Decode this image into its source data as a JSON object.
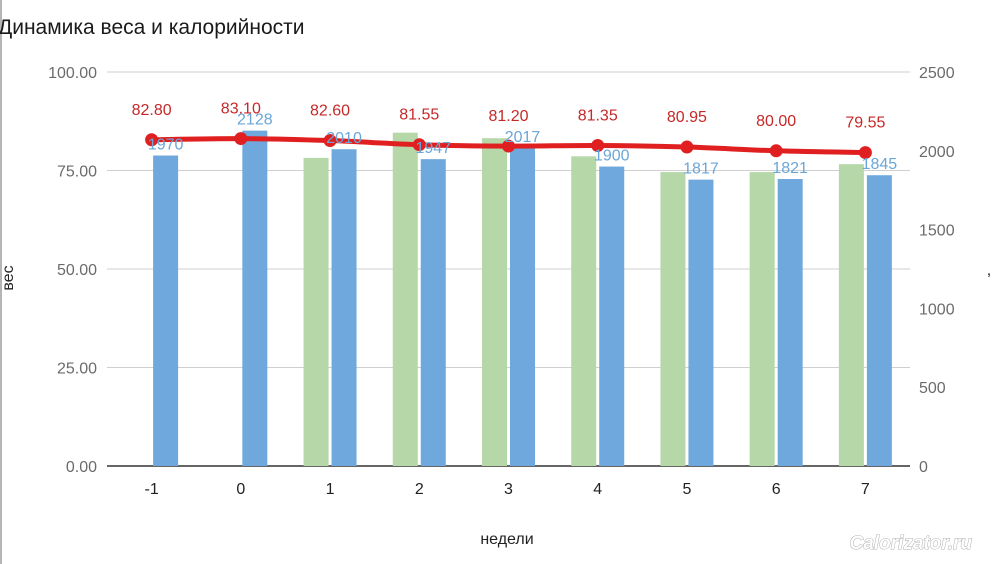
{
  "chart_data": {
    "type": "bar",
    "title": "Динамика веса и калорийности",
    "xlabel": "недели",
    "ylabel": "вес",
    "y2label": ",",
    "categories": [
      "-1",
      "0",
      "1",
      "2",
      "3",
      "4",
      "5",
      "6",
      "7"
    ],
    "ylim": [
      0,
      100
    ],
    "y2lim": [
      0,
      2500
    ],
    "y_ticks": [
      "0.00",
      "25.00",
      "50.00",
      "75.00",
      "100.00"
    ],
    "y2_ticks": [
      "0",
      "500",
      "1000",
      "1500",
      "2000",
      "2500"
    ],
    "grid": true,
    "series": [
      {
        "kind": "bar",
        "axis": "right",
        "color": "#b6d7a8",
        "values": [
          null,
          null,
          1955,
          2115,
          2080,
          1965,
          1865,
          1865,
          1915
        ]
      },
      {
        "kind": "bar",
        "axis": "right",
        "color": "#6fa8dc",
        "values": [
          1970,
          2128,
          2010,
          1947,
          2017,
          1900,
          1817,
          1821,
          1845
        ],
        "labels": [
          "1970",
          "2128",
          "2010",
          "1947",
          "2017",
          "1900",
          "1817",
          "1821",
          "1845"
        ]
      },
      {
        "kind": "line",
        "axis": "left",
        "color": "#e02020",
        "values": [
          82.8,
          83.1,
          82.6,
          81.55,
          81.2,
          81.35,
          80.95,
          80.0,
          79.55
        ],
        "labels": [
          "82.80",
          "83.10",
          "82.60",
          "81.55",
          "81.20",
          "81.35",
          "80.95",
          "80.00",
          "79.55"
        ]
      }
    ]
  },
  "watermark": "Calorizator.ru"
}
